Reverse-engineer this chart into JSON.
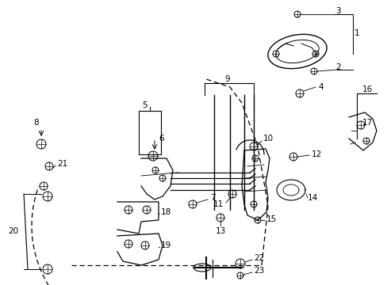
{
  "background_color": "#ffffff",
  "line_color": "#000000",
  "figsize": [
    4.89,
    3.6
  ],
  "dpi": 100
}
